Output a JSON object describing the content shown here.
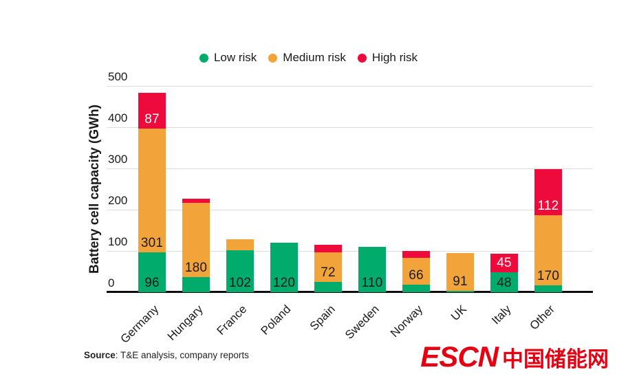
{
  "colors": {
    "low": "#00ab6c",
    "medium": "#f2a43a",
    "high": "#ee0b3c",
    "grid": "#dcdcdc",
    "axis": "#0c0c0c",
    "text": "#1a1a1a",
    "label_on_high": "#ffffff",
    "logo": "#e60012"
  },
  "legend": {
    "items": [
      {
        "label": "Low risk",
        "key": "low"
      },
      {
        "label": "Medium risk",
        "key": "medium"
      },
      {
        "label": "High risk",
        "key": "high"
      }
    ]
  },
  "chart_data": {
    "type": "bar",
    "stacked": true,
    "title": "",
    "xlabel": "",
    "ylabel": "Battery cell capacity (GWh)",
    "ylim": [
      0,
      500
    ],
    "yticks": [
      0,
      100,
      200,
      300,
      400,
      500
    ],
    "grid": true,
    "legend_position": "top",
    "categories": [
      "Germany",
      "Hungary",
      "France",
      "Poland",
      "Spain",
      "Sweden",
      "Norway",
      "UK",
      "Italy",
      "Other"
    ],
    "series": [
      {
        "name": "Low risk",
        "key": "low",
        "values": [
          96,
          36,
          102,
          120,
          25,
          110,
          18,
          4,
          48,
          16
        ],
        "data_labels": [
          "96",
          "",
          "102",
          "120",
          "",
          "110",
          "",
          "",
          "48",
          ""
        ]
      },
      {
        "name": "Medium risk",
        "key": "medium",
        "values": [
          301,
          180,
          26,
          0,
          72,
          0,
          66,
          91,
          0,
          170
        ],
        "data_labels": [
          "301",
          "180",
          "",
          "",
          "72",
          "",
          "66",
          "91",
          "",
          "170"
        ]
      },
      {
        "name": "High risk",
        "key": "high",
        "values": [
          87,
          10,
          0,
          0,
          18,
          0,
          16,
          0,
          45,
          112
        ],
        "data_labels": [
          "87",
          "",
          "",
          "",
          "",
          "",
          "",
          "",
          "45",
          "112"
        ]
      }
    ]
  },
  "source": {
    "prefix": "Source",
    "text": ": T&E analysis, company reports"
  },
  "logo": {
    "latin": "ESCN",
    "chinese": "中国储能网"
  }
}
